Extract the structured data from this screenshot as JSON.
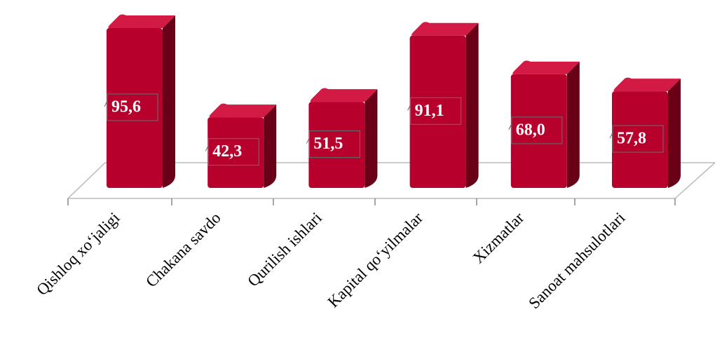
{
  "chart_data": {
    "type": "bar",
    "categories": [
      "Qishloq xoʻjaligi",
      "Chakana savdo",
      "Qurilish ishlari",
      "Kapital qoʻyilmalar",
      "Xizmatlar",
      "Sanoat mahsulotlari"
    ],
    "values": [
      95.6,
      42.3,
      51.5,
      91.1,
      68.0,
      57.8
    ],
    "value_labels": [
      "95,6",
      "42,3",
      "51,5",
      "91,1",
      "68,0",
      "57,8"
    ],
    "color": "#b8002c"
  }
}
